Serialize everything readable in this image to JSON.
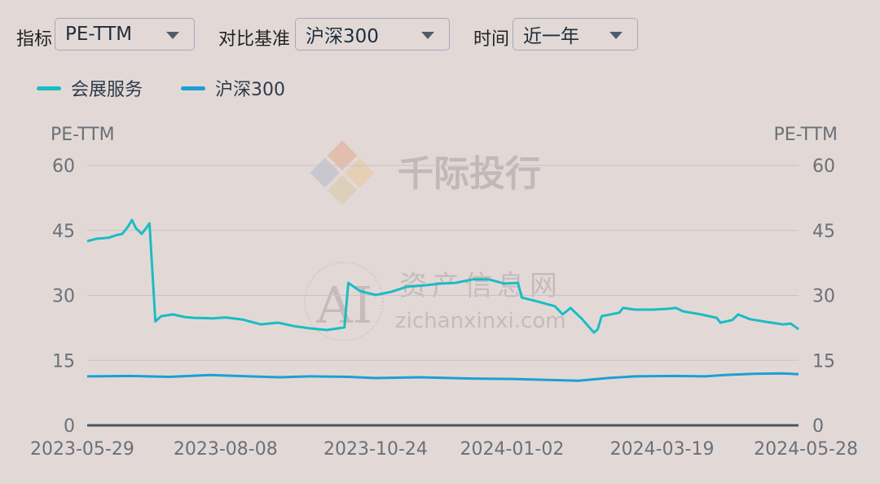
{
  "controls": {
    "metric_label": "指标",
    "metric_value": "PE-TTM",
    "benchmark_label": "对比基准",
    "benchmark_value": "沪深300",
    "time_label": "时间",
    "time_value": "近一年"
  },
  "watermarks": {
    "logo_text": "千际投行",
    "site_cn": "资产信息网",
    "site_url": "zichanxinxi.com",
    "badge": "AI"
  },
  "colors": {
    "series1": "#1bbcc4",
    "series2": "#1e9fd2",
    "grid": "#c9c0cc",
    "axis": "#4b5563"
  },
  "chart_data": {
    "type": "line",
    "ylabel_left": "PE-TTM",
    "ylabel_right": "PE-TTM",
    "ylim": [
      0,
      60
    ],
    "yticks": [
      0,
      15,
      30,
      45,
      60
    ],
    "xlim": [
      "2023-05-29",
      "2024-05-28"
    ],
    "xticks": [
      "2023-05-29",
      "2023-08-08",
      "2023-10-24",
      "2024-01-02",
      "2024-03-19",
      "2024-05-28"
    ],
    "grid": true,
    "legend": "top-left",
    "series": [
      {
        "name": "会展服务",
        "points": [
          [
            "2023-05-29",
            42.5
          ],
          [
            "2023-06-03",
            43.1
          ],
          [
            "2023-06-09",
            43.3
          ],
          [
            "2023-06-13",
            43.9
          ],
          [
            "2023-06-16",
            44.2
          ],
          [
            "2023-06-19",
            45.9
          ],
          [
            "2023-06-21",
            47.4
          ],
          [
            "2023-06-23",
            45.5
          ],
          [
            "2023-06-26",
            44.2
          ],
          [
            "2023-06-28",
            45.4
          ],
          [
            "2023-06-30",
            46.6
          ],
          [
            "2023-07-03",
            24.0
          ],
          [
            "2023-07-06",
            25.2
          ],
          [
            "2023-07-12",
            25.6
          ],
          [
            "2023-07-18",
            25.0
          ],
          [
            "2023-07-23",
            24.8
          ],
          [
            "2023-08-01",
            24.7
          ],
          [
            "2023-08-08",
            24.9
          ],
          [
            "2023-08-17",
            24.4
          ],
          [
            "2023-08-26",
            23.3
          ],
          [
            "2023-09-04",
            23.7
          ],
          [
            "2023-09-12",
            22.9
          ],
          [
            "2023-09-20",
            22.4
          ],
          [
            "2023-09-29",
            22.0
          ],
          [
            "2023-10-08",
            22.6
          ],
          [
            "2023-10-10",
            32.9
          ],
          [
            "2023-10-16",
            31.0
          ],
          [
            "2023-10-24",
            30.1
          ],
          [
            "2023-11-01",
            30.8
          ],
          [
            "2023-11-09",
            32.0
          ],
          [
            "2023-11-18",
            32.3
          ],
          [
            "2023-11-26",
            32.7
          ],
          [
            "2023-12-04",
            32.9
          ],
          [
            "2023-12-13",
            33.7
          ],
          [
            "2023-12-21",
            33.7
          ],
          [
            "2023-12-29",
            32.7
          ],
          [
            "2024-01-05",
            32.9
          ],
          [
            "2024-01-07",
            29.5
          ],
          [
            "2024-01-15",
            28.6
          ],
          [
            "2024-01-24",
            27.5
          ],
          [
            "2024-01-28",
            25.6
          ],
          [
            "2024-02-01",
            27.1
          ],
          [
            "2024-02-07",
            24.5
          ],
          [
            "2024-02-13",
            21.4
          ],
          [
            "2024-02-15",
            22.2
          ],
          [
            "2024-02-17",
            25.2
          ],
          [
            "2024-02-26",
            26.0
          ],
          [
            "2024-02-28",
            27.1
          ],
          [
            "2024-03-05",
            26.7
          ],
          [
            "2024-03-14",
            26.7
          ],
          [
            "2024-03-22",
            26.9
          ],
          [
            "2024-03-26",
            27.1
          ],
          [
            "2024-03-30",
            26.3
          ],
          [
            "2024-04-08",
            25.6
          ],
          [
            "2024-04-16",
            24.8
          ],
          [
            "2024-04-18",
            23.7
          ],
          [
            "2024-04-24",
            24.3
          ],
          [
            "2024-04-27",
            25.6
          ],
          [
            "2024-05-03",
            24.5
          ],
          [
            "2024-05-11",
            23.9
          ],
          [
            "2024-05-20",
            23.3
          ],
          [
            "2024-05-24",
            23.5
          ],
          [
            "2024-05-28",
            22.2
          ]
        ]
      },
      {
        "name": "沪深300",
        "points": [
          [
            "2023-05-29",
            11.3
          ],
          [
            "2023-06-20",
            11.4
          ],
          [
            "2023-07-10",
            11.2
          ],
          [
            "2023-07-31",
            11.6
          ],
          [
            "2023-08-20",
            11.3
          ],
          [
            "2023-09-05",
            11.1
          ],
          [
            "2023-09-20",
            11.3
          ],
          [
            "2023-10-10",
            11.2
          ],
          [
            "2023-10-24",
            10.9
          ],
          [
            "2023-11-15",
            11.1
          ],
          [
            "2023-12-13",
            10.8
          ],
          [
            "2024-01-02",
            10.7
          ],
          [
            "2024-01-20",
            10.5
          ],
          [
            "2024-02-05",
            10.3
          ],
          [
            "2024-02-20",
            10.9
          ],
          [
            "2024-03-05",
            11.3
          ],
          [
            "2024-03-25",
            11.4
          ],
          [
            "2024-04-10",
            11.3
          ],
          [
            "2024-04-20",
            11.6
          ],
          [
            "2024-05-05",
            11.9
          ],
          [
            "2024-05-20",
            12.0
          ],
          [
            "2024-05-28",
            11.8
          ]
        ]
      }
    ]
  }
}
